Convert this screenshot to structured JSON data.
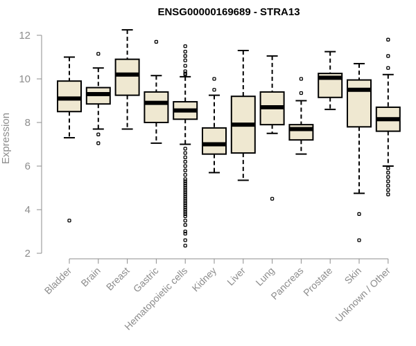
{
  "chart_data": {
    "type": "boxplot",
    "title": "ENSG00000169689 - STRA13",
    "xlabel": "",
    "ylabel": "Expression",
    "ylim": [
      2,
      12
    ],
    "yticks": [
      2,
      4,
      6,
      8,
      10,
      12
    ],
    "box_color": "#efe8d1",
    "categories": [
      "Bladder",
      "Brain",
      "Breast",
      "Gastric",
      "Hematopoietic cells",
      "Kidney",
      "Liver",
      "Lung",
      "Pancreas",
      "Prostate",
      "Skin",
      "Unknown / Other"
    ],
    "boxes": [
      {
        "name": "Bladder",
        "whisker_low": 7.3,
        "q1": 8.5,
        "median": 9.1,
        "q3": 9.9,
        "whisker_high": 11.0,
        "outliers": [
          3.5
        ]
      },
      {
        "name": "Brain",
        "whisker_low": 7.7,
        "q1": 8.85,
        "median": 9.3,
        "q3": 9.6,
        "whisker_high": 10.5,
        "outliers": [
          11.15,
          7.45,
          7.05
        ]
      },
      {
        "name": "Breast",
        "whisker_low": 7.7,
        "q1": 9.25,
        "median": 10.2,
        "q3": 10.9,
        "whisker_high": 12.25,
        "outliers": []
      },
      {
        "name": "Gastric",
        "whisker_low": 7.05,
        "q1": 8.0,
        "median": 8.9,
        "q3": 9.4,
        "whisker_high": 10.15,
        "outliers": [
          11.7
        ]
      },
      {
        "name": "Hematopoietic cells",
        "whisker_low": 7.0,
        "q1": 8.15,
        "median": 8.55,
        "q3": 8.95,
        "whisker_high": 10.1,
        "outliers": [
          11.5,
          11.25,
          11.05,
          10.85,
          10.6,
          10.35,
          10.25,
          10.2,
          6.8,
          6.6,
          6.4,
          6.2,
          6.0,
          5.8,
          5.6,
          5.4,
          5.3,
          5.2,
          5.1,
          5.0,
          4.9,
          4.8,
          4.7,
          4.6,
          4.5,
          4.4,
          4.3,
          4.2,
          4.1,
          4.0,
          3.9,
          3.8,
          3.7,
          3.5,
          3.3,
          3.0,
          2.9,
          2.6,
          2.35
        ]
      },
      {
        "name": "Kidney",
        "whisker_low": 5.7,
        "q1": 6.55,
        "median": 7.0,
        "q3": 7.75,
        "whisker_high": 9.25,
        "outliers": [
          10.0,
          9.5
        ]
      },
      {
        "name": "Liver",
        "whisker_low": 5.35,
        "q1": 6.6,
        "median": 7.9,
        "q3": 9.2,
        "whisker_high": 11.3,
        "outliers": []
      },
      {
        "name": "Lung",
        "whisker_low": 7.5,
        "q1": 7.9,
        "median": 8.7,
        "q3": 9.4,
        "whisker_high": 11.05,
        "outliers": [
          4.5
        ]
      },
      {
        "name": "Pancreas",
        "whisker_low": 6.55,
        "q1": 7.2,
        "median": 7.7,
        "q3": 7.9,
        "whisker_high": 9.0,
        "outliers": [
          10.0,
          9.35
        ]
      },
      {
        "name": "Prostate",
        "whisker_low": 8.6,
        "q1": 9.15,
        "median": 10.05,
        "q3": 10.25,
        "whisker_high": 11.25,
        "outliers": []
      },
      {
        "name": "Skin",
        "whisker_low": 4.75,
        "q1": 7.8,
        "median": 9.5,
        "q3": 9.95,
        "whisker_high": 10.7,
        "outliers": [
          3.8,
          2.6
        ]
      },
      {
        "name": "Unknown / Other",
        "whisker_low": 6.0,
        "q1": 7.6,
        "median": 8.15,
        "q3": 8.7,
        "whisker_high": 10.2,
        "outliers": [
          11.8,
          11.05,
          10.5,
          5.9,
          5.7,
          5.5,
          5.3,
          5.1,
          4.9,
          4.7
        ]
      }
    ]
  }
}
